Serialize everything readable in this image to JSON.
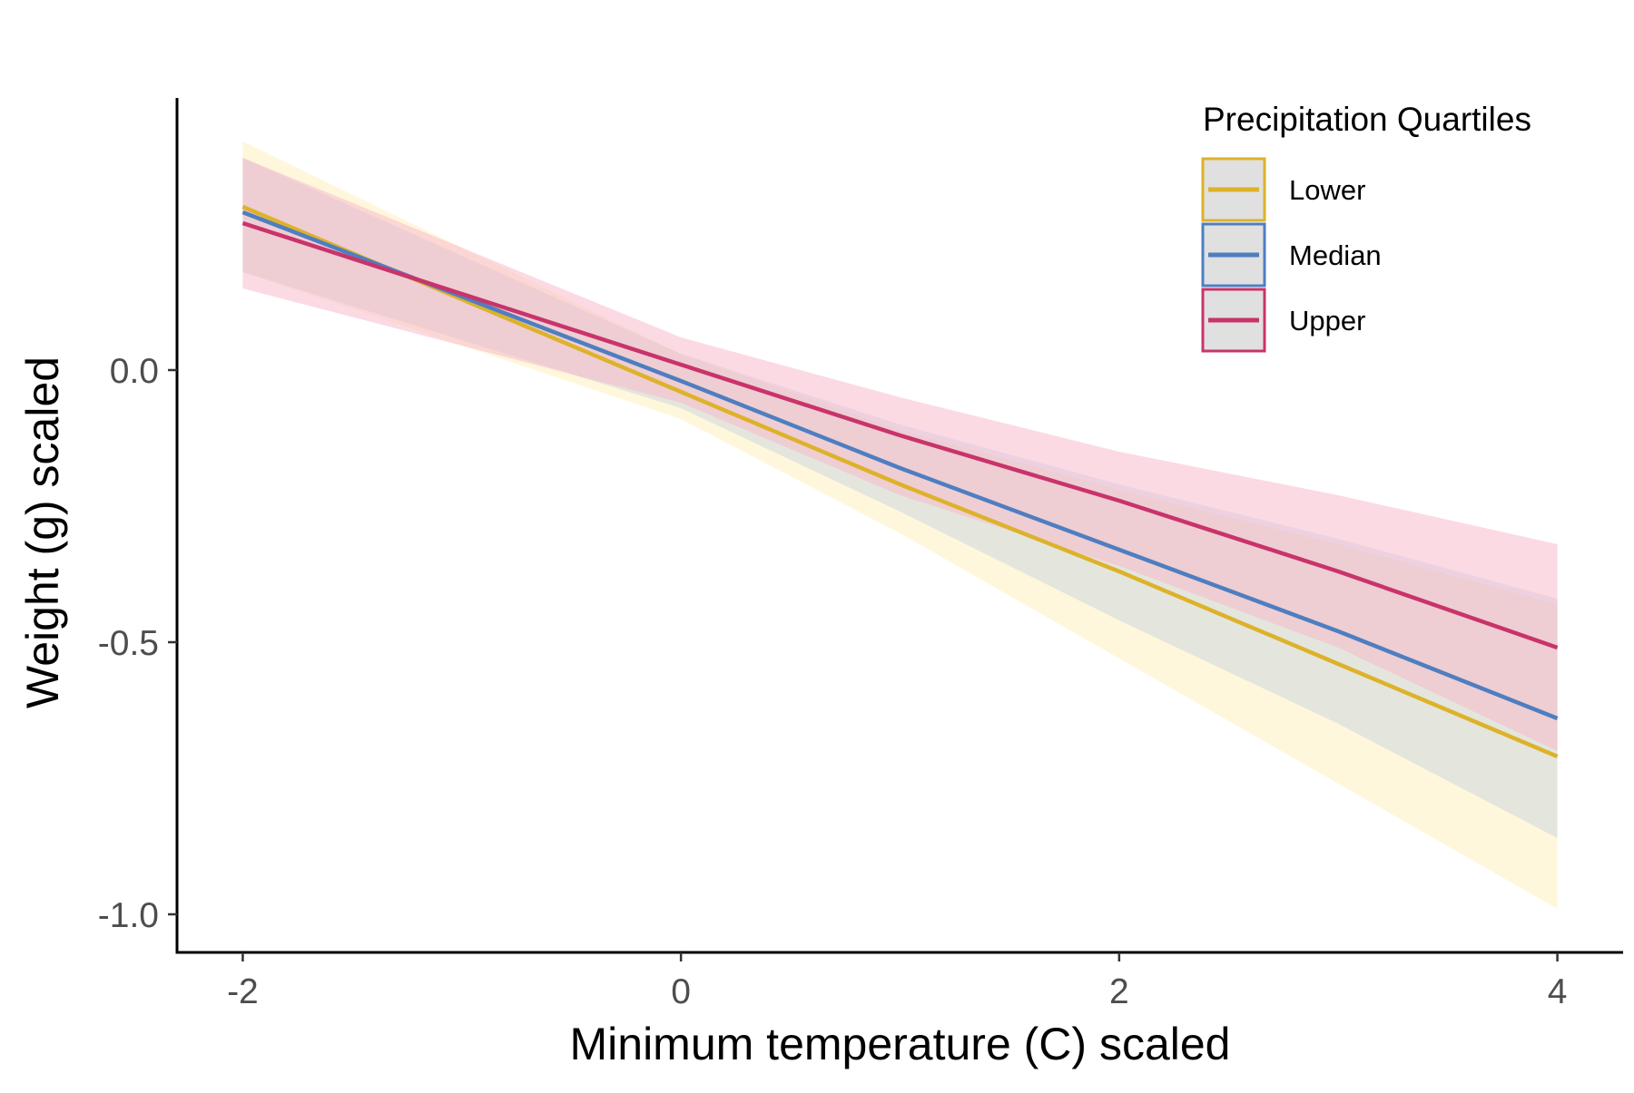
{
  "chart_data": {
    "type": "line",
    "title": "",
    "xlabel": "Minimum temperature (C) scaled",
    "ylabel": "Weight (g) scaled",
    "xlim": [
      -2.3,
      4.3
    ],
    "ylim": [
      -1.07,
      0.5
    ],
    "x_ticks": [
      -2,
      0,
      2,
      4
    ],
    "x_tick_labels": [
      "-2",
      "0",
      "2",
      "4"
    ],
    "y_ticks": [
      0,
      -0.5,
      -1
    ],
    "y_tick_labels": [
      "0.0",
      "-0.5",
      "-1.0"
    ],
    "grid": false,
    "legend": {
      "title": "Precipitation Quartiles",
      "placement": "top-right"
    },
    "series": [
      {
        "name": "Lower",
        "color": "#DDB22A",
        "ribbon_color": "#FFE89E",
        "ribbon_opacity": 0.36,
        "x": [
          -2,
          0,
          1,
          2,
          3,
          4
        ],
        "y": [
          0.3,
          -0.04,
          -0.21,
          -0.37,
          -0.54,
          -0.71
        ],
        "lower": [
          0.18,
          -0.09,
          -0.3,
          -0.53,
          -0.76,
          -0.99
        ],
        "upper": [
          0.42,
          0.03,
          -0.11,
          -0.22,
          -0.32,
          -0.43
        ]
      },
      {
        "name": "Median",
        "color": "#4F7EC0",
        "ribbon_color": "#9FBCE1",
        "ribbon_opacity": 0.28,
        "x": [
          -2,
          0,
          1,
          2,
          3,
          4
        ],
        "y": [
          0.29,
          -0.02,
          -0.18,
          -0.33,
          -0.48,
          -0.64
        ],
        "lower": [
          0.18,
          -0.07,
          -0.26,
          -0.46,
          -0.65,
          -0.86
        ],
        "upper": [
          0.39,
          0.03,
          -0.1,
          -0.21,
          -0.31,
          -0.42
        ]
      },
      {
        "name": "Upper",
        "color": "#C9336B",
        "ribbon_color": "#F7B6C9",
        "ribbon_opacity": 0.5,
        "x": [
          -2,
          0,
          1,
          2,
          3,
          4
        ],
        "y": [
          0.27,
          0.01,
          -0.12,
          -0.24,
          -0.37,
          -0.51
        ],
        "lower": [
          0.15,
          -0.06,
          -0.23,
          -0.36,
          -0.51,
          -0.7
        ],
        "upper": [
          0.39,
          0.06,
          -0.05,
          -0.15,
          -0.23,
          -0.32
        ]
      }
    ]
  }
}
